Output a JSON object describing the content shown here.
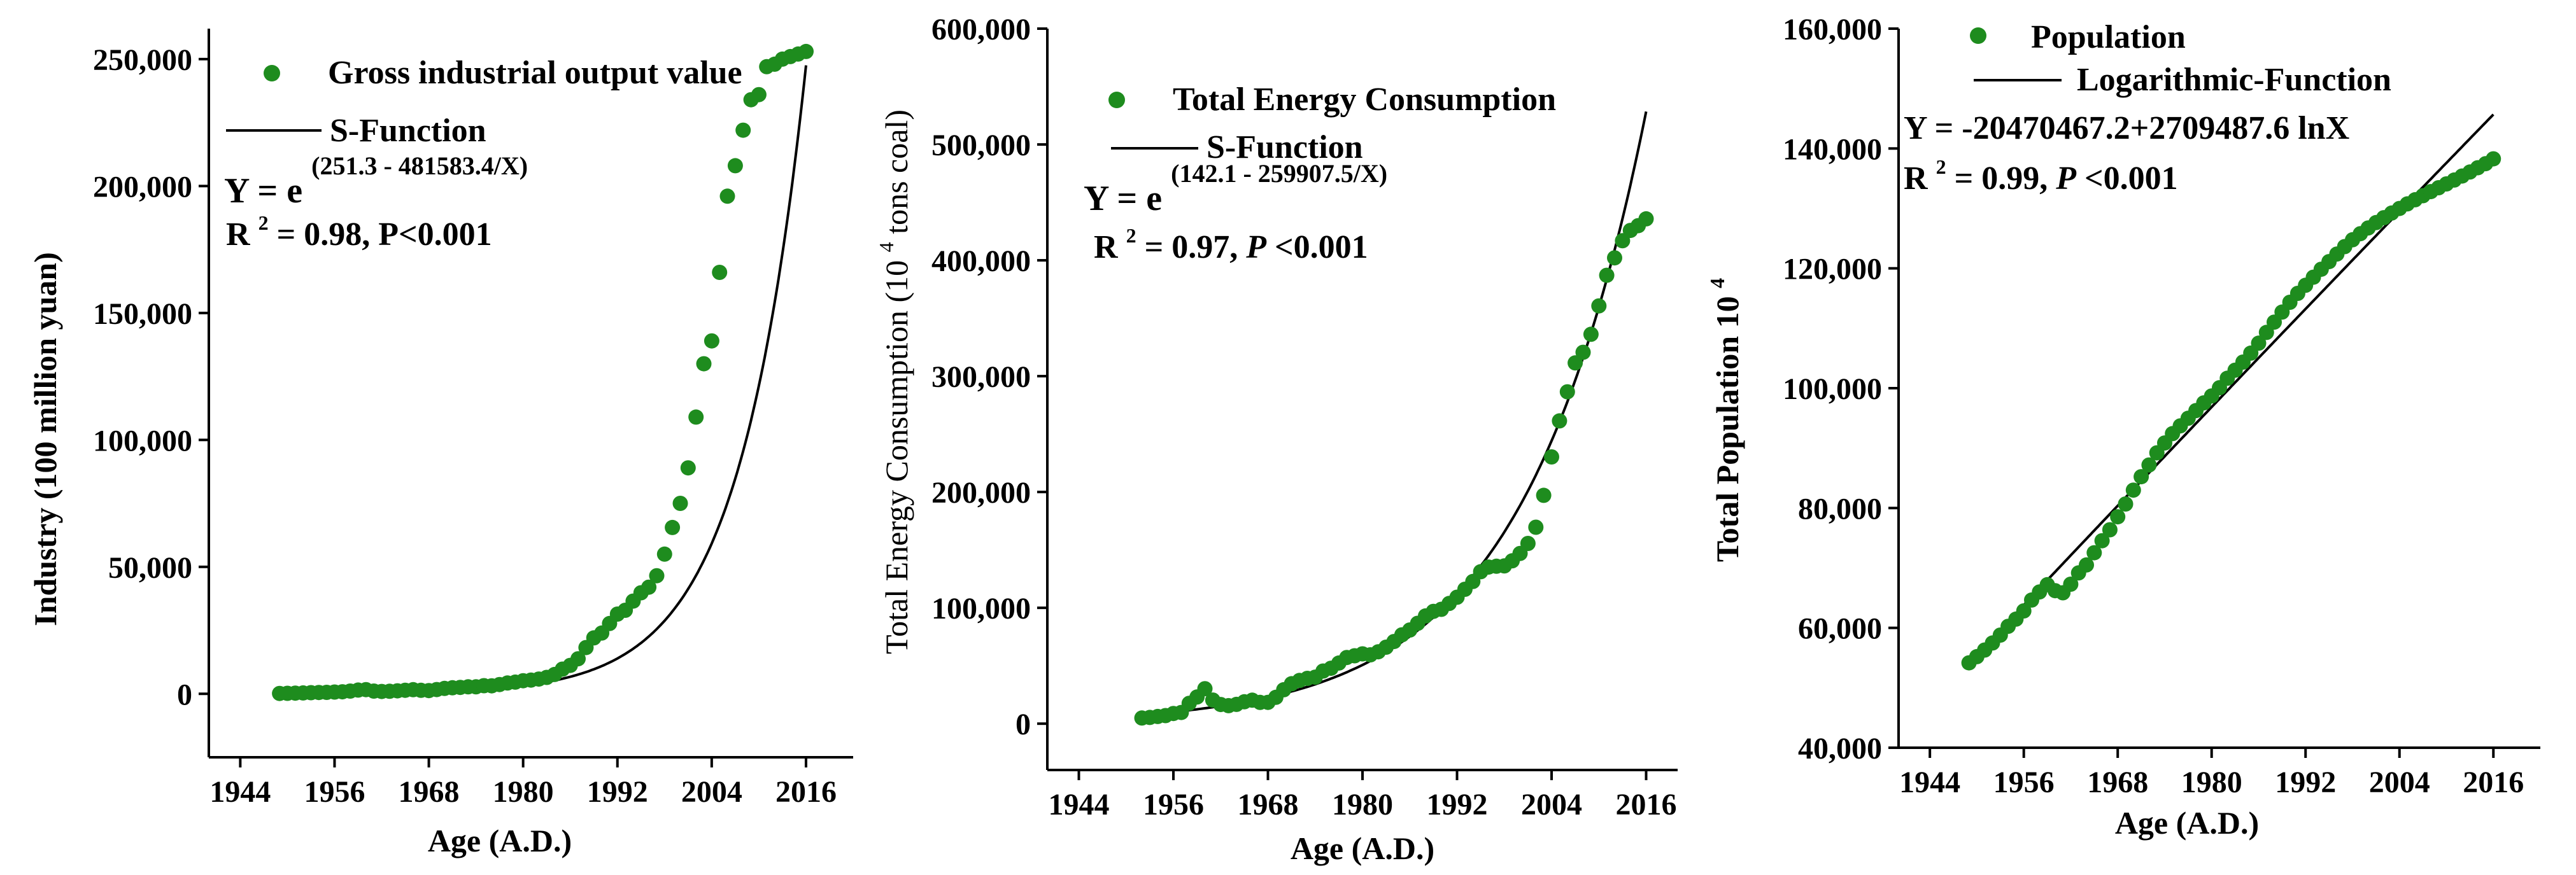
{
  "colors": {
    "points": "#1e8c1e",
    "fit_line": "#000000",
    "axis": "#000000"
  },
  "chart_data": [
    {
      "type": "scatter",
      "xlabel": "Age (A.D.)",
      "ylabel": "Industry (100 million yuan)",
      "xlim": [
        1940,
        2022
      ],
      "ylim": [
        -25000,
        262000
      ],
      "x_ticks": [
        1944,
        1956,
        1968,
        1980,
        1992,
        2004,
        2016
      ],
      "x_tick_labels": [
        "1944",
        "1956",
        "1968",
        "1980",
        "1992",
        "2004",
        "2016"
      ],
      "y_ticks": [
        0,
        50000,
        100000,
        150000,
        200000,
        250000
      ],
      "y_tick_labels": [
        "0",
        "50,000",
        "100,000",
        "150,000",
        "200,000",
        "250,000"
      ],
      "legend": {
        "position": "top-right",
        "points_label": "Gross industrial output value",
        "line_label": "S-Function"
      },
      "equation": {
        "base": "Y = e",
        "exponent": "(251.3 - 481583.4/X)"
      },
      "stats": {
        "r2": "R",
        "sup": "2",
        "rest_pre": " = 0.98, ",
        "p_label": "P<0.001",
        "p_italic": false
      },
      "fit": {
        "kind": "exp",
        "a": 251.3,
        "b": 481583.4,
        "x_start": 1949,
        "x_end": 2016
      },
      "series": [
        {
          "name": "Gross industrial output value",
          "x": [
            1949,
            1950,
            1951,
            1952,
            1953,
            1954,
            1955,
            1956,
            1957,
            1958,
            1959,
            1960,
            1961,
            1962,
            1963,
            1964,
            1965,
            1966,
            1967,
            1968,
            1969,
            1970,
            1971,
            1972,
            1973,
            1974,
            1975,
            1976,
            1977,
            1978,
            1979,
            1980,
            1981,
            1982,
            1983,
            1984,
            1985,
            1986,
            1987,
            1988,
            1989,
            1990,
            1991,
            1992,
            1993,
            1994,
            1995,
            1996,
            1997,
            1998,
            1999,
            2000,
            2001,
            2002,
            2003,
            2004,
            2005,
            2006,
            2007,
            2008,
            2009,
            2010,
            2011,
            2012,
            2013,
            2014,
            2015,
            2016
          ],
          "y": [
            140,
            190,
            260,
            350,
            450,
            520,
            560,
            700,
            790,
            1080,
            1480,
            1640,
            1060,
            920,
            990,
            1160,
            1400,
            1620,
            1380,
            1280,
            1660,
            2120,
            2380,
            2530,
            2750,
            2760,
            3210,
            3160,
            3640,
            4240,
            4600,
            5150,
            5400,
            5810,
            6460,
            7620,
            9710,
            11190,
            13810,
            18220,
            22020,
            23920,
            27700,
            31400,
            32900,
            36500,
            39800,
            42000,
            46500,
            55000,
            65500,
            75000,
            89000,
            109000,
            130000,
            139000,
            166000,
            196000,
            208000,
            222000,
            234000,
            236000,
            247000,
            248000,
            250000,
            251000,
            252000,
            253000
          ]
        }
      ]
    },
    {
      "type": "scatter",
      "xlabel": "Age (A.D.)",
      "ylabel_pre": "Total Energy Consumption (10",
      "ylabel_sup": "4",
      "ylabel_post": " tons coal)",
      "xlim": [
        1940,
        2020
      ],
      "ylim": [
        -40000,
        600000
      ],
      "x_ticks": [
        1944,
        1956,
        1968,
        1980,
        1992,
        2004,
        2016
      ],
      "x_tick_labels": [
        "1944",
        "1956",
        "1968",
        "1980",
        "1992",
        "2004",
        "2016"
      ],
      "y_ticks": [
        0,
        100000,
        200000,
        300000,
        400000,
        500000,
        600000
      ],
      "y_tick_labels": [
        "0",
        "100,000",
        "200,000",
        "300,000",
        "400,000",
        "500,000",
        "600,000"
      ],
      "legend": {
        "position": "top-right",
        "points_label": "Total Energy Consumption",
        "line_label": "S-Function"
      },
      "equation": {
        "base": "Y = e",
        "exponent": "(142.1 - 259907.5/X)"
      },
      "stats": {
        "r2": "R",
        "sup": "2",
        "rest_pre": " = 0.97, ",
        "p_label": "P",
        "p_rest": "<0.001",
        "p_italic": true
      },
      "fit": {
        "kind": "exp",
        "a": 142.1,
        "b": 259907.5,
        "x_start": 1952,
        "x_end": 2016
      },
      "series": [
        {
          "name": "Total Energy Consumption",
          "x": [
            1952,
            1953,
            1954,
            1955,
            1956,
            1957,
            1958,
            1959,
            1960,
            1961,
            1962,
            1963,
            1964,
            1965,
            1966,
            1967,
            1968,
            1969,
            1970,
            1971,
            1972,
            1973,
            1974,
            1975,
            1976,
            1977,
            1978,
            1979,
            1980,
            1981,
            1982,
            1983,
            1984,
            1985,
            1986,
            1987,
            1988,
            1989,
            1990,
            1991,
            1992,
            1993,
            1994,
            1995,
            1996,
            1997,
            1998,
            1999,
            2000,
            2001,
            2002,
            2003,
            2004,
            2005,
            2006,
            2007,
            2008,
            2009,
            2010,
            2011,
            2012,
            2013,
            2014,
            2015,
            2016
          ],
          "y": [
            4900,
            5400,
            6200,
            6968,
            8800,
            9644,
            17599,
            23000,
            30188,
            20390,
            16540,
            15567,
            16637,
            18901,
            20269,
            18328,
            18405,
            22730,
            29291,
            34496,
            37273,
            39109,
            40144,
            45425,
            47831,
            52354,
            57144,
            58588,
            60275,
            59447,
            62067,
            66040,
            70904,
            76682,
            80850,
            86632,
            92997,
            96934,
            98703,
            103783,
            109170,
            115993,
            122737,
            131176,
            135192,
            135909,
            136184,
            140569,
            146964,
            155547,
            169577,
            197083,
            230281,
            261369,
            286467,
            311442,
            320611,
            336126,
            360648,
            387043,
            402138,
            416913,
            425806,
            429905,
            435819
          ]
        }
      ]
    },
    {
      "type": "scatter",
      "xlabel": "Age (A.D.)",
      "ylabel_pre": "Total Population 10",
      "ylabel_sup": "4",
      "ylabel_post": "",
      "xlim": [
        1940,
        2022
      ],
      "ylim": [
        40000,
        160000
      ],
      "x_ticks": [
        1944,
        1956,
        1968,
        1980,
        1992,
        2004,
        2016
      ],
      "x_tick_labels": [
        "1944",
        "1956",
        "1968",
        "1980",
        "1992",
        "2004",
        "2016"
      ],
      "y_ticks": [
        40000,
        60000,
        80000,
        100000,
        120000,
        140000,
        160000
      ],
      "y_tick_labels": [
        "40,000",
        "60,000",
        "80,000",
        "100,000",
        "120,000",
        "140,000",
        "160,000"
      ],
      "legend": {
        "position": "top-left",
        "points_label": "Population",
        "line_label": "Logarithmic-Function"
      },
      "equation": {
        "text": "Y = -20470467.2+2709487.6 lnX"
      },
      "stats": {
        "r2": "R",
        "sup": "2",
        "rest_pre": " = 0.99, ",
        "p_label": "P",
        "p_rest": "<0.001",
        "p_italic": true
      },
      "fit": {
        "kind": "log",
        "a": -20470467.2,
        "b": 2709487.6,
        "x_start": 1949,
        "x_end": 2016
      },
      "series": [
        {
          "name": "Population",
          "x": [
            1949,
            1950,
            1951,
            1952,
            1953,
            1954,
            1955,
            1956,
            1957,
            1958,
            1959,
            1960,
            1961,
            1962,
            1963,
            1964,
            1965,
            1966,
            1967,
            1968,
            1969,
            1970,
            1971,
            1972,
            1973,
            1974,
            1975,
            1976,
            1977,
            1978,
            1979,
            1980,
            1981,
            1982,
            1983,
            1984,
            1985,
            1986,
            1987,
            1988,
            1989,
            1990,
            1991,
            1992,
            1993,
            1994,
            1995,
            1996,
            1997,
            1998,
            1999,
            2000,
            2001,
            2002,
            2003,
            2004,
            2005,
            2006,
            2007,
            2008,
            2009,
            2010,
            2011,
            2012,
            2013,
            2014,
            2015,
            2016
          ],
          "y": [
            54167,
            55196,
            56300,
            57482,
            58796,
            60266,
            61465,
            62828,
            64653,
            65994,
            67207,
            66207,
            65859,
            67295,
            69172,
            70499,
            72538,
            74542,
            76368,
            78534,
            80671,
            82992,
            85229,
            87177,
            89211,
            90859,
            92420,
            93717,
            94974,
            96259,
            97542,
            98705,
            100072,
            101654,
            103008,
            104357,
            105851,
            107507,
            109300,
            111026,
            112704,
            114333,
            115823,
            117171,
            118517,
            119850,
            121121,
            122389,
            123626,
            124761,
            125786,
            126743,
            127627,
            128453,
            129227,
            129988,
            130756,
            131448,
            132129,
            132802,
            133450,
            134091,
            134735,
            135404,
            136072,
            136782,
            137462,
            138271
          ]
        }
      ]
    }
  ]
}
